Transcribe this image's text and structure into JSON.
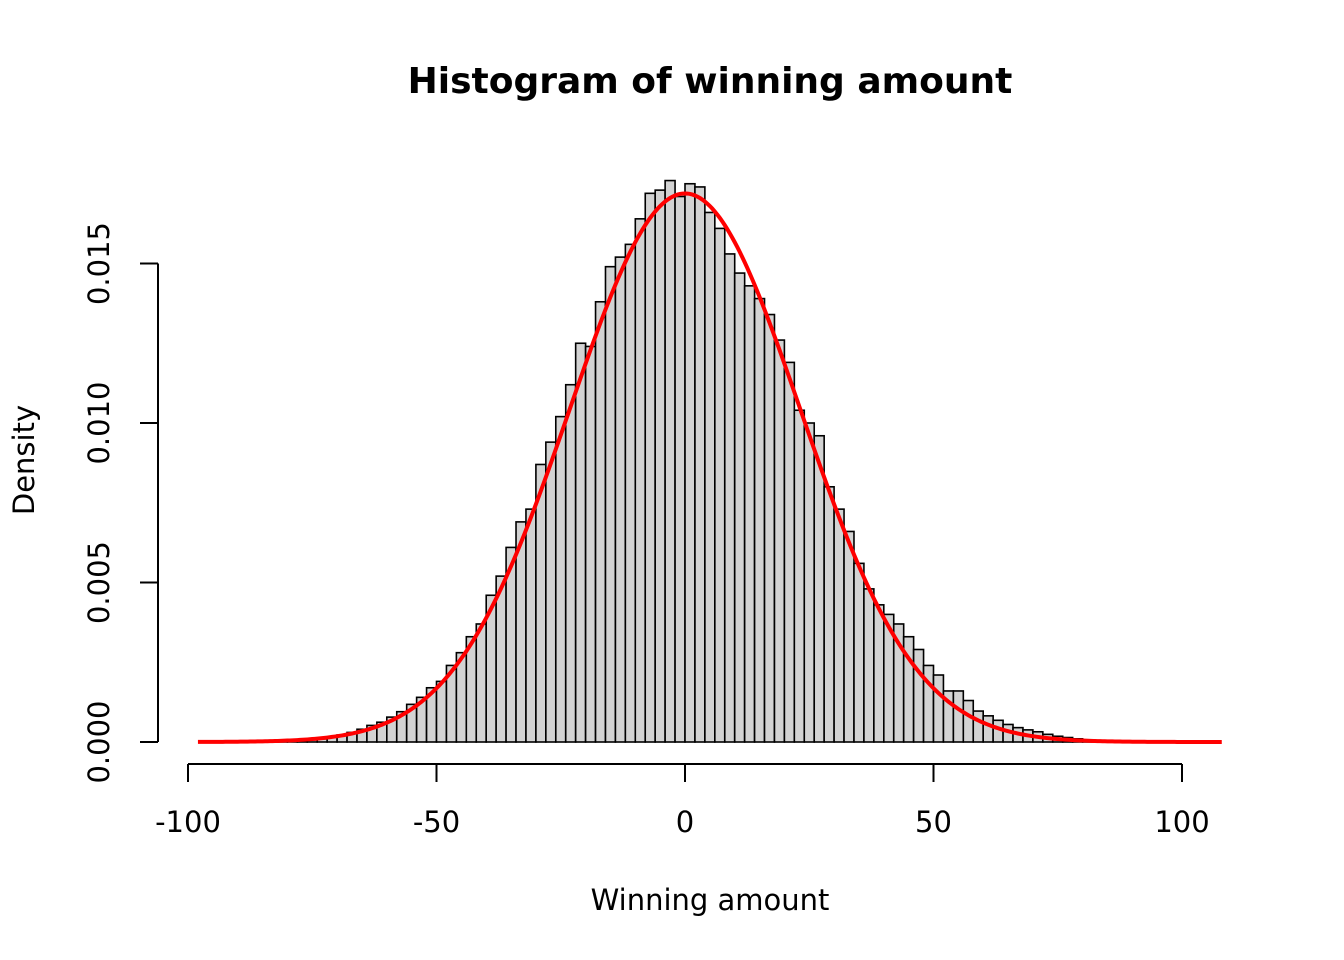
{
  "chart_data": {
    "type": "bar",
    "title": "Histogram of winning amount",
    "xlabel": "Winning amount",
    "ylabel": "Density",
    "xlim": [
      -100,
      100
    ],
    "ylim": [
      0,
      0.017
    ],
    "x_ticks": [
      -100,
      -50,
      0,
      50,
      100
    ],
    "x_tick_labels": [
      "-100",
      "-50",
      "0",
      "50",
      "100"
    ],
    "y_ticks": [
      0,
      0.005,
      0.01,
      0.015
    ],
    "y_tick_labels": [
      "0.000",
      "0.005",
      "0.010",
      "0.015"
    ],
    "bin_width": 2,
    "bin_start": -84,
    "values": [
      1e-05,
      2e-05,
      3e-05,
      5e-05,
      7e-05,
      0.0001,
      0.00015,
      0.00022,
      0.0003,
      0.0004,
      0.00052,
      0.00062,
      0.00078,
      0.00095,
      0.00118,
      0.0014,
      0.0017,
      0.0019,
      0.0024,
      0.0028,
      0.0033,
      0.0037,
      0.0046,
      0.0052,
      0.0061,
      0.0069,
      0.0073,
      0.0087,
      0.0094,
      0.0102,
      0.0112,
      0.0125,
      0.0124,
      0.0138,
      0.0149,
      0.0152,
      0.0156,
      0.0164,
      0.0172,
      0.0173,
      0.0176,
      0.0171,
      0.0175,
      0.0174,
      0.0166,
      0.0161,
      0.0153,
      0.0147,
      0.0143,
      0.0139,
      0.0134,
      0.0126,
      0.0119,
      0.0104,
      0.01,
      0.0096,
      0.008,
      0.0073,
      0.0066,
      0.0056,
      0.0048,
      0.0043,
      0.004,
      0.0037,
      0.0033,
      0.0029,
      0.0024,
      0.0021,
      0.0016,
      0.0016,
      0.0013,
      0.00097,
      0.00082,
      0.00068,
      0.00055,
      0.00045,
      0.00038,
      0.00032,
      0.00024,
      0.00018,
      0.00014,
      0.0001,
      7e-05,
      5e-05,
      3e-05,
      2e-05,
      1e-05,
      5e-06,
      3e-06,
      2e-06
    ],
    "curve": {
      "type": "normal-density",
      "mean": 0,
      "sd": 23.2,
      "x_range": [
        -98,
        108
      ],
      "color": "#ff0000"
    },
    "bar_fill": "#d3d3d3",
    "bar_stroke": "#000000",
    "grid": false,
    "legend": "none"
  }
}
